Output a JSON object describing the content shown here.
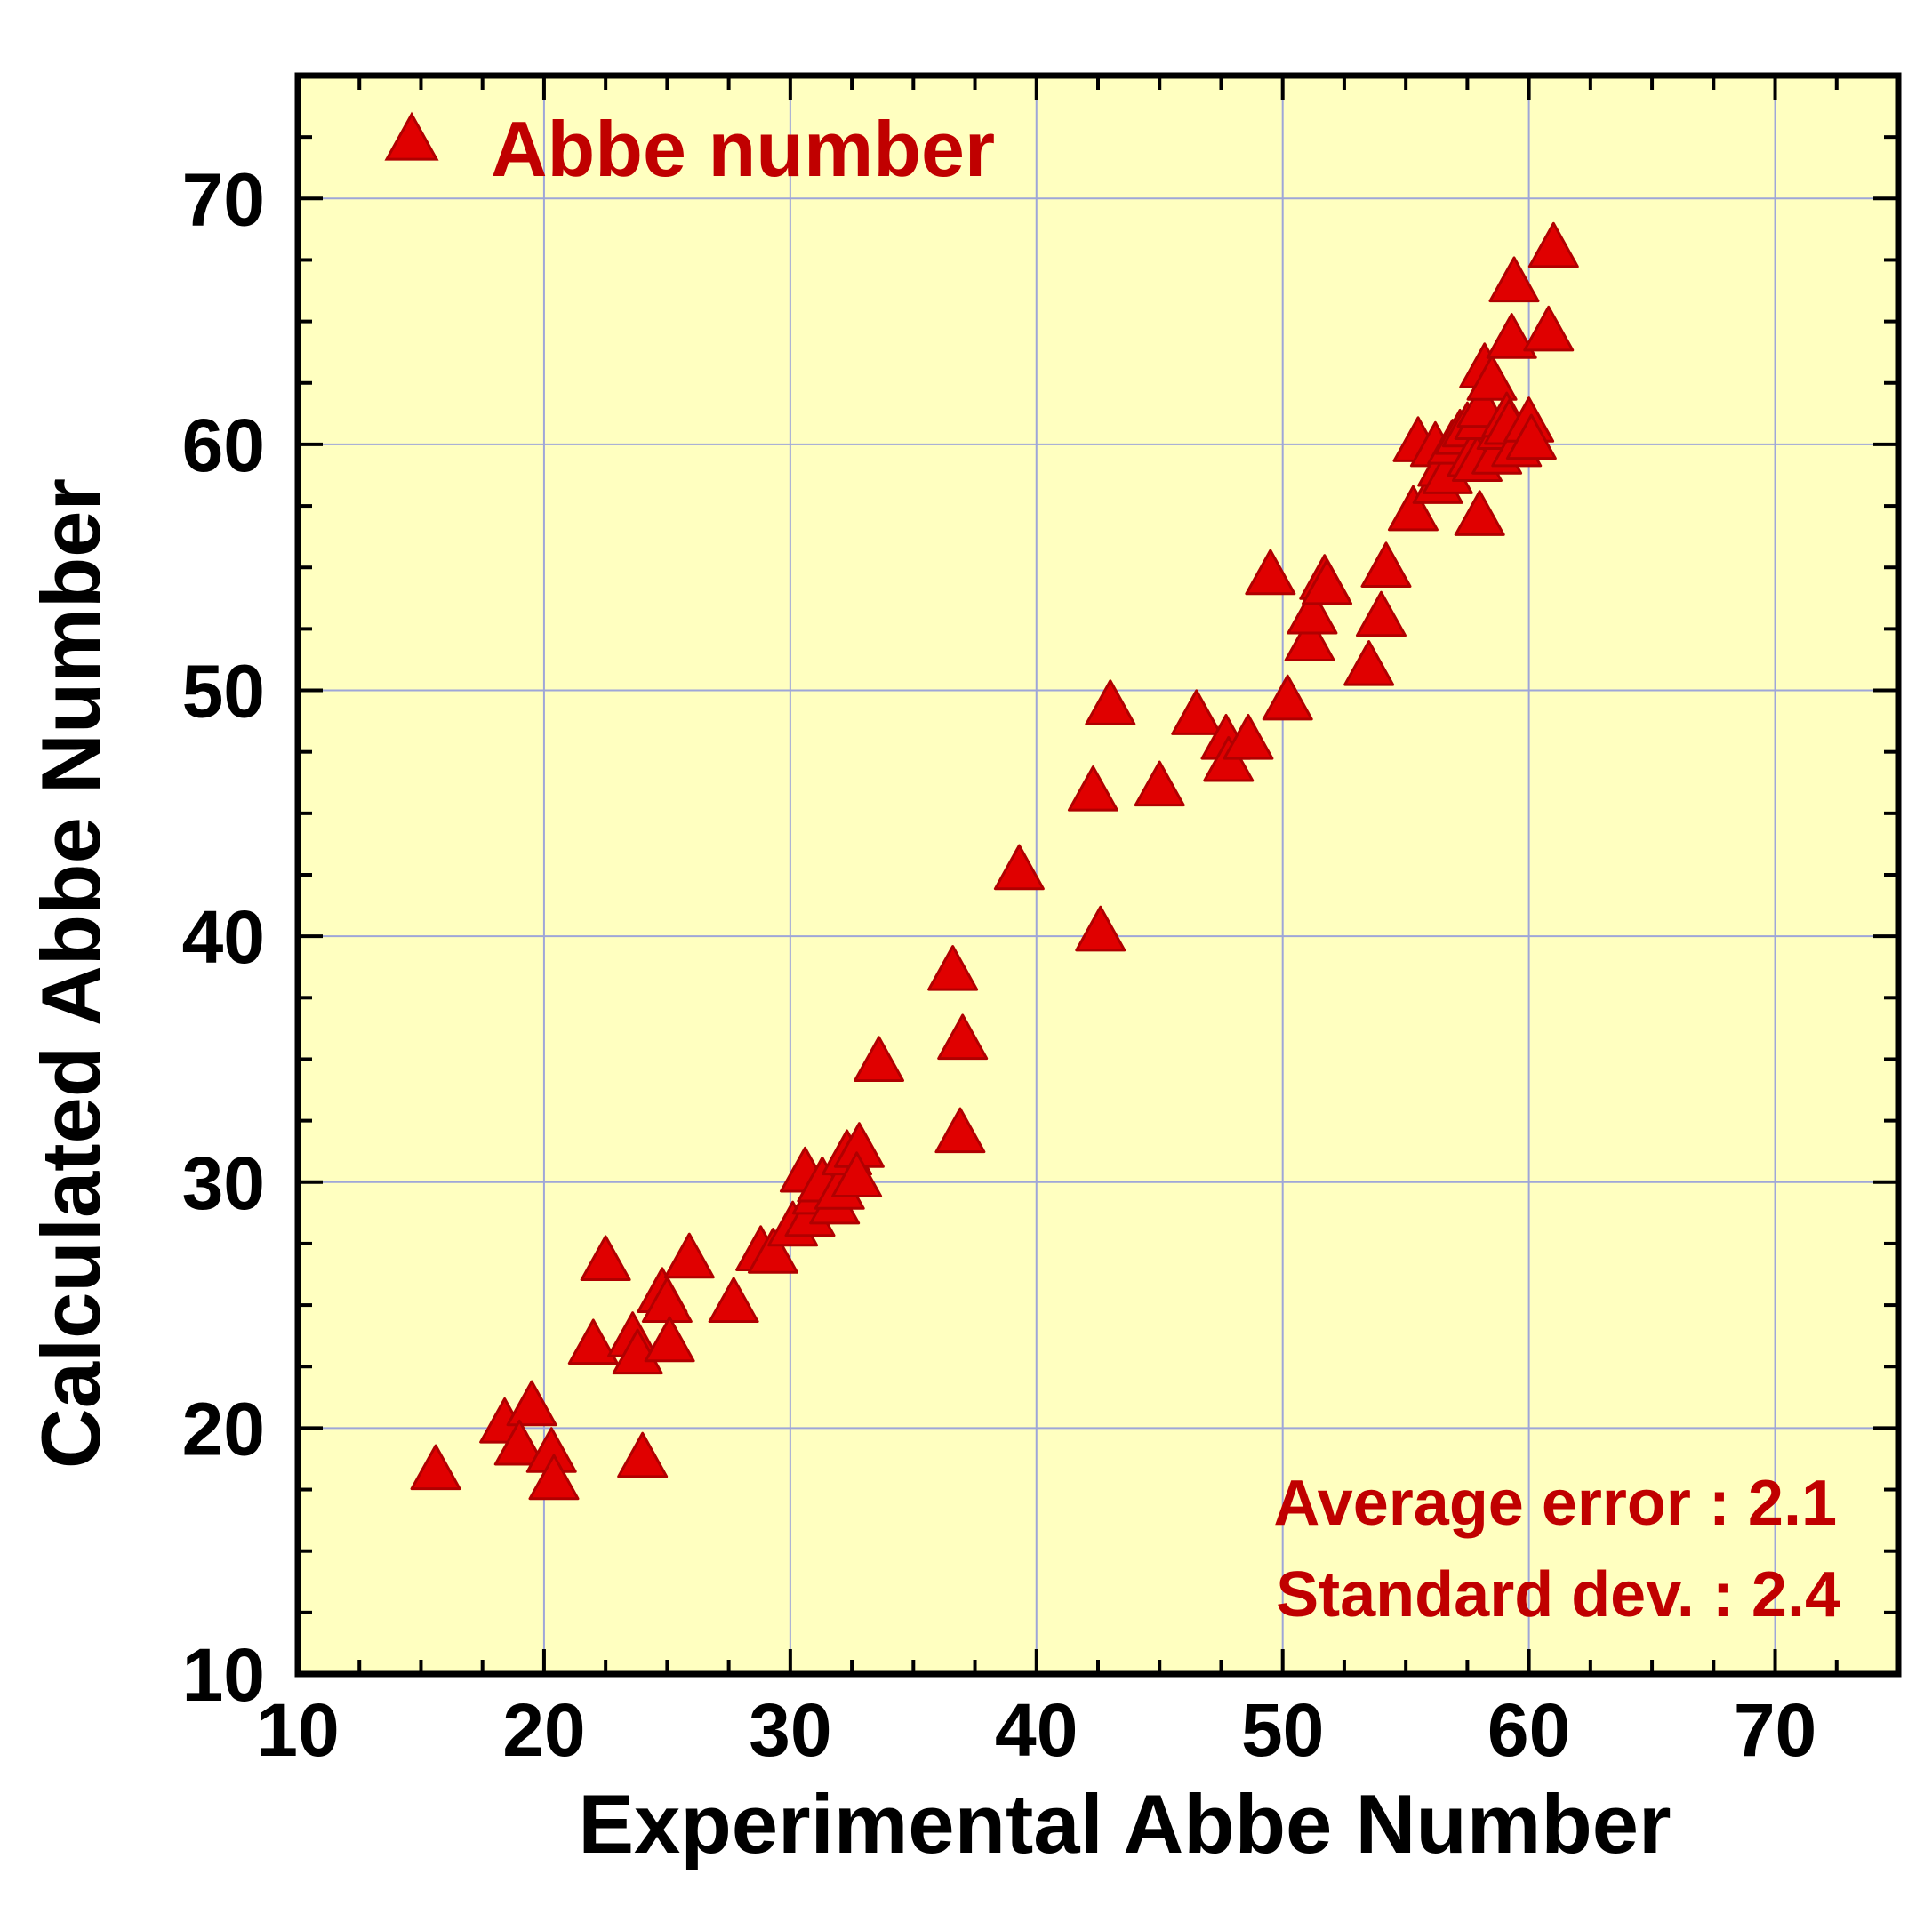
{
  "chart_data": {
    "type": "scatter",
    "title": "",
    "xlabel": "Experimental Abbe Number",
    "ylabel": "Calculated Abbe Number",
    "xlim": [
      10,
      75
    ],
    "ylim": [
      10,
      75
    ],
    "xticks": [
      10,
      20,
      30,
      40,
      50,
      60,
      70
    ],
    "yticks": [
      10,
      20,
      30,
      40,
      50,
      60,
      70
    ],
    "grid": true,
    "plot_background": "#ffffc0",
    "grid_color": "#9ea6d8",
    "legend": {
      "position": "top-left"
    },
    "series": [
      {
        "name": "Abbe number",
        "marker": "triangle",
        "color": "#e00000",
        "edge_color": "#b00000",
        "points": [
          [
            15.6,
            18.2
          ],
          [
            18.4,
            20.1
          ],
          [
            19.5,
            20.8
          ],
          [
            19.0,
            19.2
          ],
          [
            20.3,
            18.9
          ],
          [
            20.4,
            17.8
          ],
          [
            22.0,
            23.3
          ],
          [
            22.5,
            26.7
          ],
          [
            23.6,
            23.6
          ],
          [
            23.8,
            22.9
          ],
          [
            24.0,
            18.7
          ],
          [
            24.8,
            25.4
          ],
          [
            25.0,
            25.0
          ],
          [
            25.1,
            23.4
          ],
          [
            25.9,
            26.8
          ],
          [
            27.7,
            25.0
          ],
          [
            28.8,
            27.1
          ],
          [
            29.3,
            27.0
          ],
          [
            30.1,
            28.1
          ],
          [
            30.6,
            30.3
          ],
          [
            30.8,
            28.5
          ],
          [
            31.1,
            29.4
          ],
          [
            31.3,
            29.9
          ],
          [
            31.8,
            29.0
          ],
          [
            32.0,
            29.6
          ],
          [
            32.3,
            31.0
          ],
          [
            32.8,
            31.3
          ],
          [
            32.7,
            30.1
          ],
          [
            33.6,
            34.8
          ],
          [
            36.6,
            38.5
          ],
          [
            37.0,
            35.7
          ],
          [
            36.9,
            31.9
          ],
          [
            39.3,
            42.6
          ],
          [
            42.3,
            45.8
          ],
          [
            42.6,
            40.1
          ],
          [
            43.0,
            49.3
          ],
          [
            45.0,
            46.0
          ],
          [
            46.5,
            48.9
          ],
          [
            47.7,
            47.9
          ],
          [
            47.8,
            47.0
          ],
          [
            48.6,
            47.9
          ],
          [
            49.5,
            54.6
          ],
          [
            50.2,
            49.5
          ],
          [
            51.1,
            51.9
          ],
          [
            51.2,
            53.0
          ],
          [
            51.7,
            54.4
          ],
          [
            51.8,
            54.2
          ],
          [
            53.5,
            50.9
          ],
          [
            54.0,
            52.9
          ],
          [
            54.2,
            54.9
          ],
          [
            55.3,
            57.2
          ],
          [
            55.5,
            60.0
          ],
          [
            56.2,
            59.8
          ],
          [
            56.3,
            58.3
          ],
          [
            56.5,
            59.0
          ],
          [
            56.7,
            58.7
          ],
          [
            56.9,
            59.9
          ],
          [
            57.2,
            60.3
          ],
          [
            57.5,
            60.6
          ],
          [
            57.7,
            59.4
          ],
          [
            57.9,
            59.2
          ],
          [
            58.0,
            57.0
          ],
          [
            58.0,
            60.9
          ],
          [
            58.1,
            61.4
          ],
          [
            58.2,
            63.0
          ],
          [
            58.5,
            62.5
          ],
          [
            58.7,
            59.5
          ],
          [
            58.9,
            60.5
          ],
          [
            59.1,
            61.0
          ],
          [
            59.2,
            60.7
          ],
          [
            59.3,
            64.2
          ],
          [
            59.4,
            66.5
          ],
          [
            59.5,
            59.8
          ],
          [
            60.0,
            60.8
          ],
          [
            60.1,
            60.1
          ],
          [
            60.8,
            64.5
          ],
          [
            61.0,
            67.9
          ]
        ]
      }
    ],
    "annotations": [
      "Average error : 2.1",
      "Standard dev. : 2.4"
    ]
  }
}
